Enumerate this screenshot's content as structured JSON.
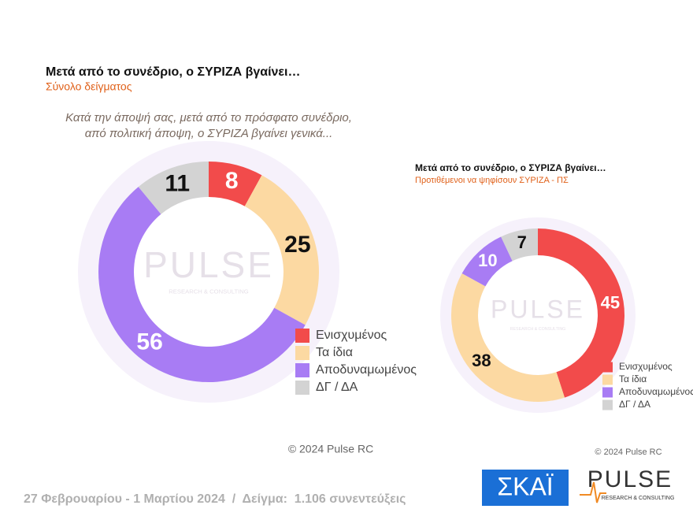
{
  "chart_data": [
    {
      "type": "donut",
      "title": "Μετά από το συνέδριο, ο ΣΥΡΙΖΑ βγαίνει…",
      "subtitle": "Σύνολο δείγματος",
      "question": [
        "Κατά την άποψή σας, μετά από το πρόσφατο συνέδριο,",
        "από πολιτική άποψη, ο ΣΥΡΙΖΑ βγαίνει γενικά..."
      ],
      "categories": [
        "Ενισχυμένος",
        "Τα ίδια",
        "Αποδυναμωμένος",
        "ΔΓ / ΔΑ"
      ],
      "values": [
        8,
        25,
        56,
        11
      ],
      "colors": [
        "#f24b4b",
        "#fcd9a2",
        "#a87cf4",
        "#d3d3d3"
      ],
      "source": "© 2024 Pulse RC"
    },
    {
      "type": "donut",
      "title": "Μετά από το συνέδριο, ο ΣΥΡΙΖΑ βγαίνει…",
      "subtitle": "Προτιθέμενοι να ψηφίσουν ΣΥΡΙΖΑ - ΠΣ",
      "categories": [
        "Ενισχυμένος",
        "Τα ίδια",
        "Αποδυναμωμένος",
        "ΔΓ / ΔΑ"
      ],
      "values": [
        45,
        38,
        10,
        7
      ],
      "colors": [
        "#f24b4b",
        "#fcd9a2",
        "#a87cf4",
        "#d3d3d3"
      ],
      "source": "© 2024 Pulse RC"
    }
  ],
  "footer": "27 Φεβρουαρίου - 1 Μαρτίου 2024  /  Δείγμα:  1.106 συνεντεύξεις",
  "logos": {
    "skai": "ΣΚΑΪ",
    "pulse": "PULSE",
    "tagline": "RESEARCH & CONSULTING"
  }
}
